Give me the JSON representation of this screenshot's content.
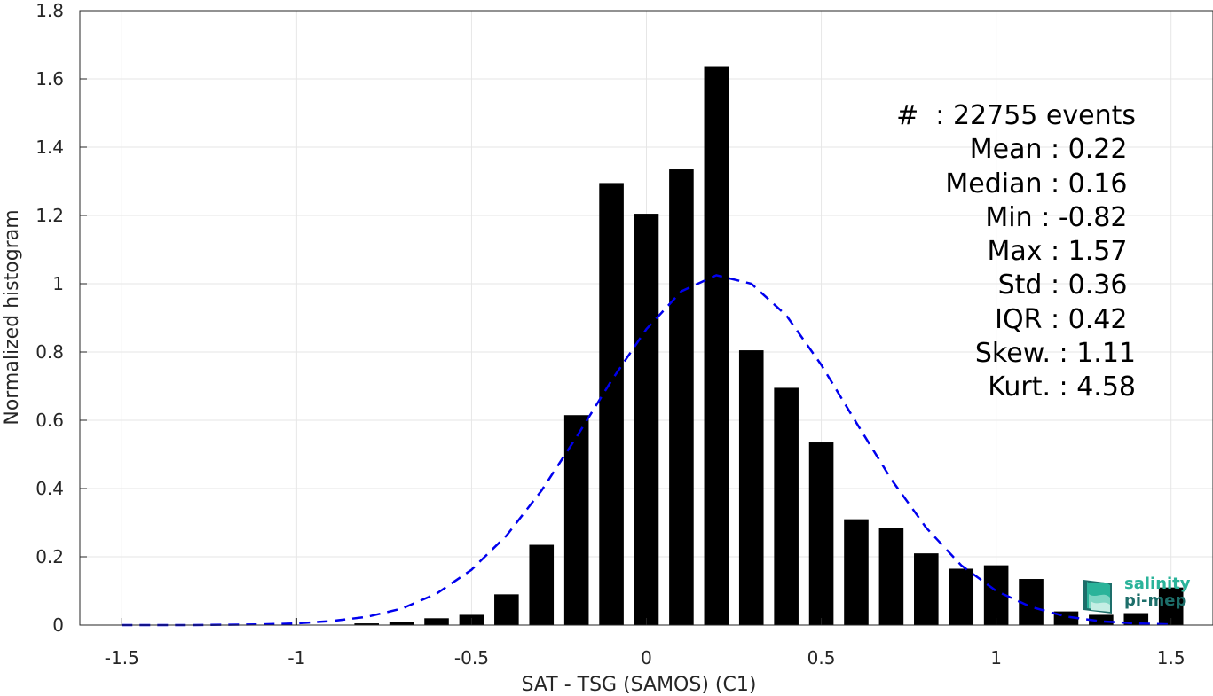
{
  "chart_data": {
    "type": "bar",
    "xlabel": "SAT - TSG (SAMOS) (C1)",
    "ylabel": "Normalized histogram",
    "xlim": [
      -1.62,
      1.62
    ],
    "ylim": [
      0,
      1.8
    ],
    "grid": true,
    "x_ticks": [
      -1.5,
      -1,
      -0.5,
      0,
      0.5,
      1,
      1.5
    ],
    "x_tick_labels": [
      "-1.5",
      "-1",
      "-0.5",
      "0",
      "0.5",
      "1",
      "1.5"
    ],
    "y_ticks": [
      0,
      0.2,
      0.4,
      0.6,
      0.8,
      1,
      1.2,
      1.4,
      1.6,
      1.8
    ],
    "y_tick_labels": [
      "0",
      "0.2",
      "0.4",
      "0.6",
      "0.8",
      "1",
      "1.2",
      "1.4",
      "1.6",
      "1.8"
    ],
    "bar_width": 0.07,
    "bars": {
      "x": [
        -0.8,
        -0.7,
        -0.6,
        -0.5,
        -0.4,
        -0.3,
        -0.2,
        -0.1,
        0.0,
        0.1,
        0.2,
        0.3,
        0.4,
        0.5,
        0.6,
        0.7,
        0.8,
        0.9,
        1.0,
        1.1,
        1.2,
        1.3,
        1.4,
        1.5
      ],
      "values": [
        0.005,
        0.008,
        0.02,
        0.03,
        0.09,
        0.235,
        0.615,
        1.295,
        1.205,
        1.335,
        1.635,
        0.805,
        0.695,
        0.535,
        0.31,
        0.285,
        0.21,
        0.165,
        0.175,
        0.135,
        0.04,
        0.03,
        0.035,
        0.11
      ],
      "color": "#000000"
    },
    "fit_curve": {
      "style": "dashed",
      "color": "#0000ee",
      "x": [
        -1.5,
        -1.4,
        -1.3,
        -1.2,
        -1.1,
        -1.0,
        -0.9,
        -0.8,
        -0.7,
        -0.6,
        -0.5,
        -0.4,
        -0.3,
        -0.2,
        -0.1,
        0.0,
        0.1,
        0.2,
        0.3,
        0.4,
        0.5,
        0.6,
        0.7,
        0.8,
        0.9,
        1.0,
        1.1,
        1.2,
        1.3,
        1.4,
        1.5
      ],
      "y": [
        0.0,
        0.0,
        0.0,
        0.001,
        0.002,
        0.005,
        0.012,
        0.024,
        0.048,
        0.092,
        0.162,
        0.262,
        0.394,
        0.551,
        0.716,
        0.867,
        0.978,
        1.025,
        1.0,
        0.907,
        0.762,
        0.593,
        0.427,
        0.285,
        0.175,
        0.1,
        0.053,
        0.025,
        0.011,
        0.005,
        0.002
      ]
    }
  },
  "stats": {
    "lines": [
      "#  : 22755 events",
      "Mean : 0.22 ",
      "Median : 0.16 ",
      "Min : -0.82 ",
      "Max : 1.57 ",
      "Std : 0.36 ",
      "IQR : 0.42 ",
      "Skew. : 1.11",
      "Kurt. : 4.58"
    ]
  },
  "logo": {
    "line1": "salinity",
    "line2": "pi-mep",
    "color_primary": "#2bb39a",
    "color_secondary": "#1d6e6a"
  }
}
